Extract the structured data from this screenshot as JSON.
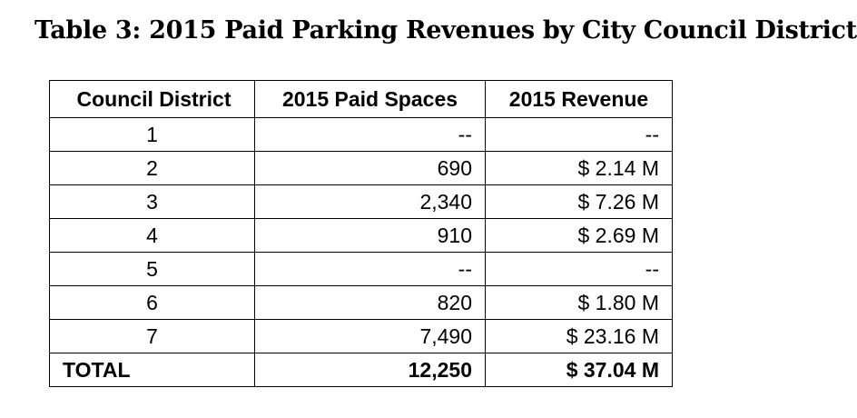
{
  "title": "Table 3: 2015 Paid Parking Revenues by City Council District",
  "table": {
    "headers": [
      "Council District",
      "2015 Paid Spaces",
      "2015 Revenue"
    ],
    "rows": [
      {
        "district": "1",
        "spaces": "--",
        "revenue": "--"
      },
      {
        "district": "2",
        "spaces": "690",
        "revenue": "$ 2.14 M"
      },
      {
        "district": "3",
        "spaces": "2,340",
        "revenue": "$ 7.26 M"
      },
      {
        "district": "4",
        "spaces": "910",
        "revenue": "$ 2.69 M"
      },
      {
        "district": "5",
        "spaces": "--",
        "revenue": "--"
      },
      {
        "district": "6",
        "spaces": "820",
        "revenue": "$ 1.80 M"
      },
      {
        "district": "7",
        "spaces": "7,490",
        "revenue": "$ 23.16 M"
      }
    ],
    "total": {
      "label": "TOTAL",
      "spaces": "12,250",
      "revenue": "$ 37.04 M"
    }
  }
}
